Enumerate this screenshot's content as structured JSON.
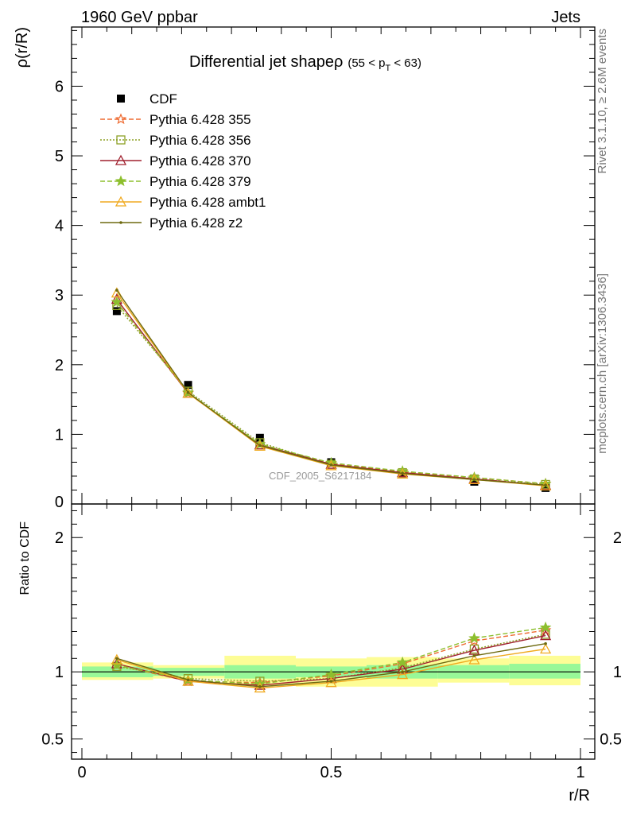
{
  "header": {
    "left": "1960 GeV ppbar",
    "right": "Jets"
  },
  "side": {
    "rivet": "Rivet 3.1.10, ≥ 2.6M events",
    "mcplots": "mcplots.cern.ch [arXiv:1306.3436]"
  },
  "chart_data": [
    {
      "type": "line",
      "panel": "main",
      "title": "Differential jet shapeρ",
      "title_sub": "(55 < p",
      "title_sub_t": "T",
      "title_sub_end": " < 63)",
      "ylabel": "ρ(r/R)",
      "watermark": "CDF_2005_S6217184",
      "xlim": [
        0,
        1
      ],
      "ylim": [
        0,
        6.85
      ],
      "y_ticks": [
        0,
        1,
        2,
        3,
        4,
        5,
        6
      ],
      "x": [
        0.07,
        0.213,
        0.357,
        0.5,
        0.643,
        0.787,
        0.93
      ],
      "series": [
        {
          "name": "CDF",
          "color": "#000000",
          "style": "data",
          "marker": "square",
          "values": [
            2.77,
            1.71,
            0.95,
            0.6,
            0.44,
            0.32,
            0.23
          ]
        },
        {
          "name": "Pythia 6.428 355",
          "color": "#ee6a30",
          "style": "dashed",
          "marker": "star-open",
          "values": [
            2.9,
            1.59,
            0.86,
            0.58,
            0.46,
            0.38,
            0.29
          ]
        },
        {
          "name": "Pythia 6.428 356",
          "color": "#8da026",
          "style": "dotted",
          "marker": "square-open",
          "values": [
            2.85,
            1.62,
            0.88,
            0.57,
            0.45,
            0.36,
            0.28
          ]
        },
        {
          "name": "Pythia 6.428 370",
          "color": "#a0202e",
          "style": "solid",
          "marker": "triangle-open",
          "values": [
            2.94,
            1.59,
            0.85,
            0.57,
            0.45,
            0.36,
            0.27
          ]
        },
        {
          "name": "Pythia 6.428 379",
          "color": "#8dbf2e",
          "style": "dashed",
          "marker": "star",
          "values": [
            2.9,
            1.6,
            0.86,
            0.59,
            0.47,
            0.38,
            0.29
          ]
        },
        {
          "name": "Pythia 6.428 ambt1",
          "color": "#f0aa20",
          "style": "solid",
          "marker": "triangle-open",
          "values": [
            3.03,
            1.59,
            0.83,
            0.55,
            0.43,
            0.35,
            0.26
          ]
        },
        {
          "name": "Pythia 6.428 z2",
          "color": "#6e6a10",
          "style": "solid",
          "marker": "dot",
          "values": [
            3.07,
            1.6,
            0.84,
            0.56,
            0.44,
            0.35,
            0.27
          ]
        }
      ]
    },
    {
      "type": "line",
      "panel": "ratio",
      "ylabel": "Ratio to CDF",
      "xlabel": "r/R",
      "xlim": [
        0,
        1
      ],
      "ylim": [
        0.35,
        2.25
      ],
      "y_ticks": [
        0.5,
        1,
        2
      ],
      "y_tick_labels": [
        "0.5",
        "1",
        "2"
      ],
      "x_ticks": [
        0,
        0.5,
        1
      ],
      "x_tick_labels": [
        "0",
        "0.5",
        "1"
      ],
      "x": [
        0.07,
        0.213,
        0.357,
        0.5,
        0.643,
        0.787,
        0.93
      ],
      "bins": [
        [
          0,
          0.143
        ],
        [
          0.143,
          0.286
        ],
        [
          0.286,
          0.429
        ],
        [
          0.429,
          0.571
        ],
        [
          0.571,
          0.714
        ],
        [
          0.714,
          0.857
        ],
        [
          0.857,
          1.0
        ]
      ],
      "band_stat": [
        [
          0.96,
          1.04
        ],
        [
          0.97,
          1.03
        ],
        [
          0.95,
          1.05
        ],
        [
          0.96,
          1.04
        ],
        [
          0.95,
          1.05
        ],
        [
          0.95,
          1.05
        ],
        [
          0.95,
          1.06
        ]
      ],
      "band_total": [
        [
          0.94,
          1.07
        ],
        [
          0.95,
          1.05
        ],
        [
          0.9,
          1.12
        ],
        [
          0.89,
          1.1
        ],
        [
          0.89,
          1.11
        ],
        [
          0.92,
          1.1
        ],
        [
          0.9,
          1.12
        ]
      ],
      "series": [
        {
          "name": "Pythia 6.428 355",
          "values": [
            1.05,
            0.93,
            0.92,
            0.97,
            1.06,
            1.23,
            1.31
          ]
        },
        {
          "name": "Pythia 6.428 356",
          "values": [
            1.04,
            0.95,
            0.93,
            0.95,
            1.03,
            1.17,
            1.28
          ]
        },
        {
          "name": "Pythia 6.428 370",
          "values": [
            1.06,
            0.93,
            0.9,
            0.95,
            1.02,
            1.16,
            1.27
          ]
        },
        {
          "name": "Pythia 6.428 379",
          "values": [
            1.05,
            0.94,
            0.91,
            0.98,
            1.07,
            1.25,
            1.33
          ]
        },
        {
          "name": "Pythia 6.428 ambt1",
          "values": [
            1.09,
            0.93,
            0.88,
            0.92,
            0.98,
            1.09,
            1.17
          ]
        },
        {
          "name": "Pythia 6.428 z2",
          "values": [
            1.1,
            0.94,
            0.89,
            0.93,
            1.0,
            1.12,
            1.21
          ]
        }
      ]
    }
  ]
}
